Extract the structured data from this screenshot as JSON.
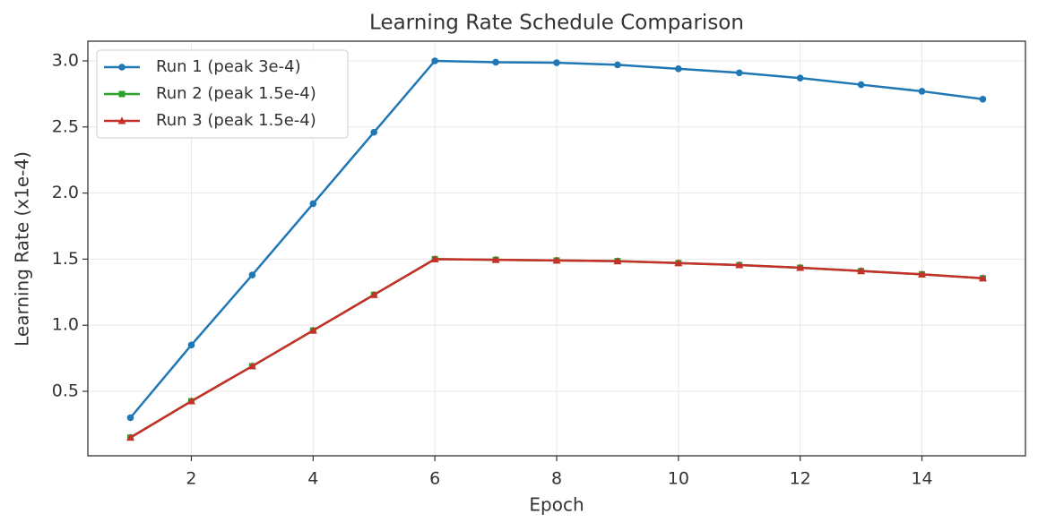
{
  "chart_data": {
    "type": "line",
    "title": "Learning Rate Schedule Comparison",
    "x_label": "Epoch",
    "y_label": "Learning Rate (x1e-4)",
    "x": [
      1,
      2,
      3,
      4,
      5,
      6,
      7,
      8,
      9,
      10,
      11,
      12,
      13,
      14,
      15
    ],
    "series": [
      {
        "name": "Run 1 (peak 3e-4)",
        "color": "#1f77b4",
        "marker": "circle",
        "values": [
          0.3,
          0.85,
          1.38,
          1.92,
          2.46,
          3.0,
          2.99,
          2.986,
          2.97,
          2.94,
          2.91,
          2.87,
          2.82,
          2.77,
          2.71
        ]
      },
      {
        "name": "Run 2 (peak 1.5e-4)",
        "color": "#2ca02c",
        "marker": "square",
        "values": [
          0.15,
          0.425,
          0.69,
          0.96,
          1.23,
          1.5,
          1.495,
          1.49,
          1.485,
          1.47,
          1.455,
          1.435,
          1.41,
          1.385,
          1.355
        ]
      },
      {
        "name": "Run 3 (peak 1.5e-4)",
        "color": "#c62f2a",
        "marker": "triangle",
        "values": [
          0.15,
          0.425,
          0.69,
          0.96,
          1.23,
          1.5,
          1.495,
          1.49,
          1.485,
          1.47,
          1.455,
          1.435,
          1.41,
          1.385,
          1.355
        ]
      }
    ],
    "xlim": [
      0.3,
      15.7
    ],
    "xticks": [
      2,
      4,
      6,
      8,
      10,
      12,
      14
    ],
    "ylim": [
      0.012,
      3.149
    ],
    "yticks": [
      {
        "value": 0.5,
        "label": "0.5"
      },
      {
        "value": 1,
        "label": "1.0"
      },
      {
        "value": 1.5,
        "label": "1.5"
      },
      {
        "value": 2,
        "label": "2.0"
      },
      {
        "value": 2.5,
        "label": "2.5"
      },
      {
        "value": 3,
        "label": "3.0"
      }
    ],
    "grid": true,
    "legend": "upper-left"
  }
}
